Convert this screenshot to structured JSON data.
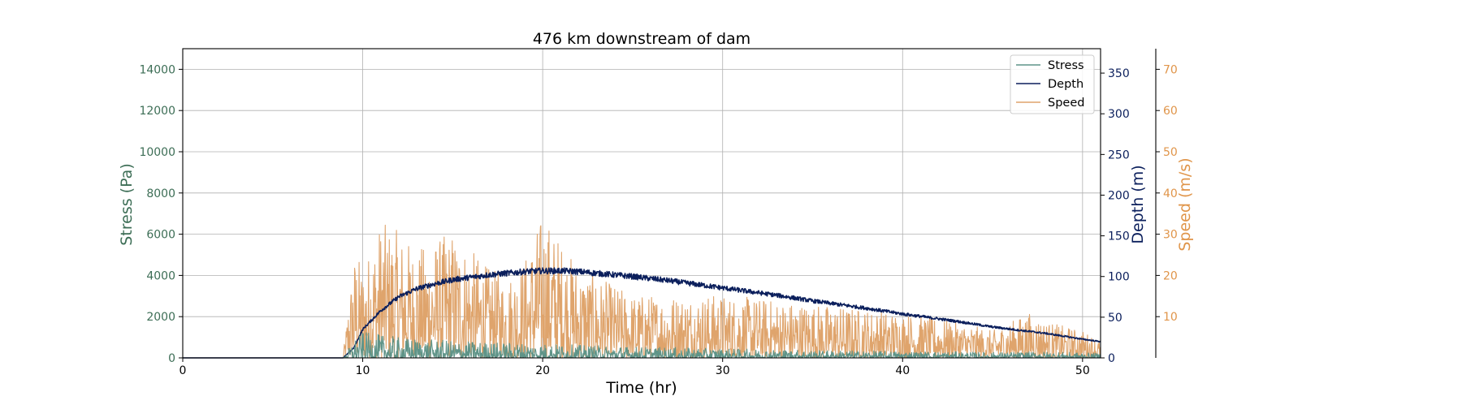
{
  "chart_data": {
    "type": "line",
    "title": "476 km downstream of dam",
    "xlabel": "Time (hr)",
    "xlim": [
      0,
      51
    ],
    "xticks": [
      0,
      10,
      20,
      30,
      40,
      50
    ],
    "grid": true,
    "legend_position": "top-right",
    "axes": [
      {
        "id": "stress",
        "side": "left",
        "label": "Stress (Pa)",
        "color": "#3d6e56",
        "ylim": [
          0,
          15000
        ],
        "ticks": [
          0,
          2000,
          4000,
          6000,
          8000,
          10000,
          12000,
          14000
        ]
      },
      {
        "id": "depth",
        "side": "right",
        "label": "Depth (m)",
        "color": "#0b1f5c",
        "ylim": [
          0,
          380
        ],
        "ticks": [
          0,
          50,
          100,
          150,
          200,
          250,
          300,
          350
        ]
      },
      {
        "id": "speed",
        "side": "right-offset",
        "label": "Speed (m/s)",
        "color": "#e0954a",
        "ylim": [
          0,
          75
        ],
        "ticks": [
          10,
          20,
          30,
          40,
          50,
          60,
          70
        ]
      }
    ],
    "series": [
      {
        "name": "Stress",
        "axis": "stress",
        "color": "#5f9488",
        "x": [
          0,
          8.9,
          9.5,
          10,
          11,
          12,
          14,
          16,
          18,
          20,
          22,
          25,
          30,
          35,
          40,
          45,
          48,
          51
        ],
        "y": [
          0,
          0,
          350,
          500,
          450,
          400,
          350,
          320,
          300,
          280,
          250,
          220,
          180,
          150,
          130,
          110,
          120,
          90
        ]
      },
      {
        "name": "Depth",
        "axis": "depth",
        "color": "#0b1f5c",
        "x": [
          0,
          8.9,
          9.5,
          10,
          11,
          12,
          13,
          14,
          15,
          16,
          17,
          18,
          19,
          20,
          21,
          22,
          23,
          25,
          27,
          30,
          33,
          35,
          38,
          40,
          43,
          45,
          48,
          50,
          51
        ],
        "y": [
          0,
          0,
          12,
          35,
          58,
          75,
          85,
          91,
          96,
          99,
          102,
          104,
          106,
          107,
          107,
          106,
          104,
          100,
          95,
          86,
          77,
          70,
          61,
          54,
          45,
          38,
          30,
          23,
          20
        ]
      },
      {
        "name": "Speed",
        "axis": "speed",
        "color": "#dfa46c",
        "x": [
          0,
          8.9,
          9.3,
          9.6,
          10,
          11,
          12,
          13,
          14,
          15,
          16,
          17,
          18,
          19,
          20,
          22,
          25,
          28,
          30,
          35,
          40,
          43,
          45,
          47,
          48,
          50,
          51
        ],
        "y": [
          0,
          0,
          8,
          12,
          10,
          15,
          14,
          12,
          13,
          14,
          12,
          10,
          9,
          11,
          16,
          10,
          7,
          7,
          7,
          6,
          5,
          4,
          3,
          5,
          4,
          3,
          2
        ]
      }
    ]
  }
}
